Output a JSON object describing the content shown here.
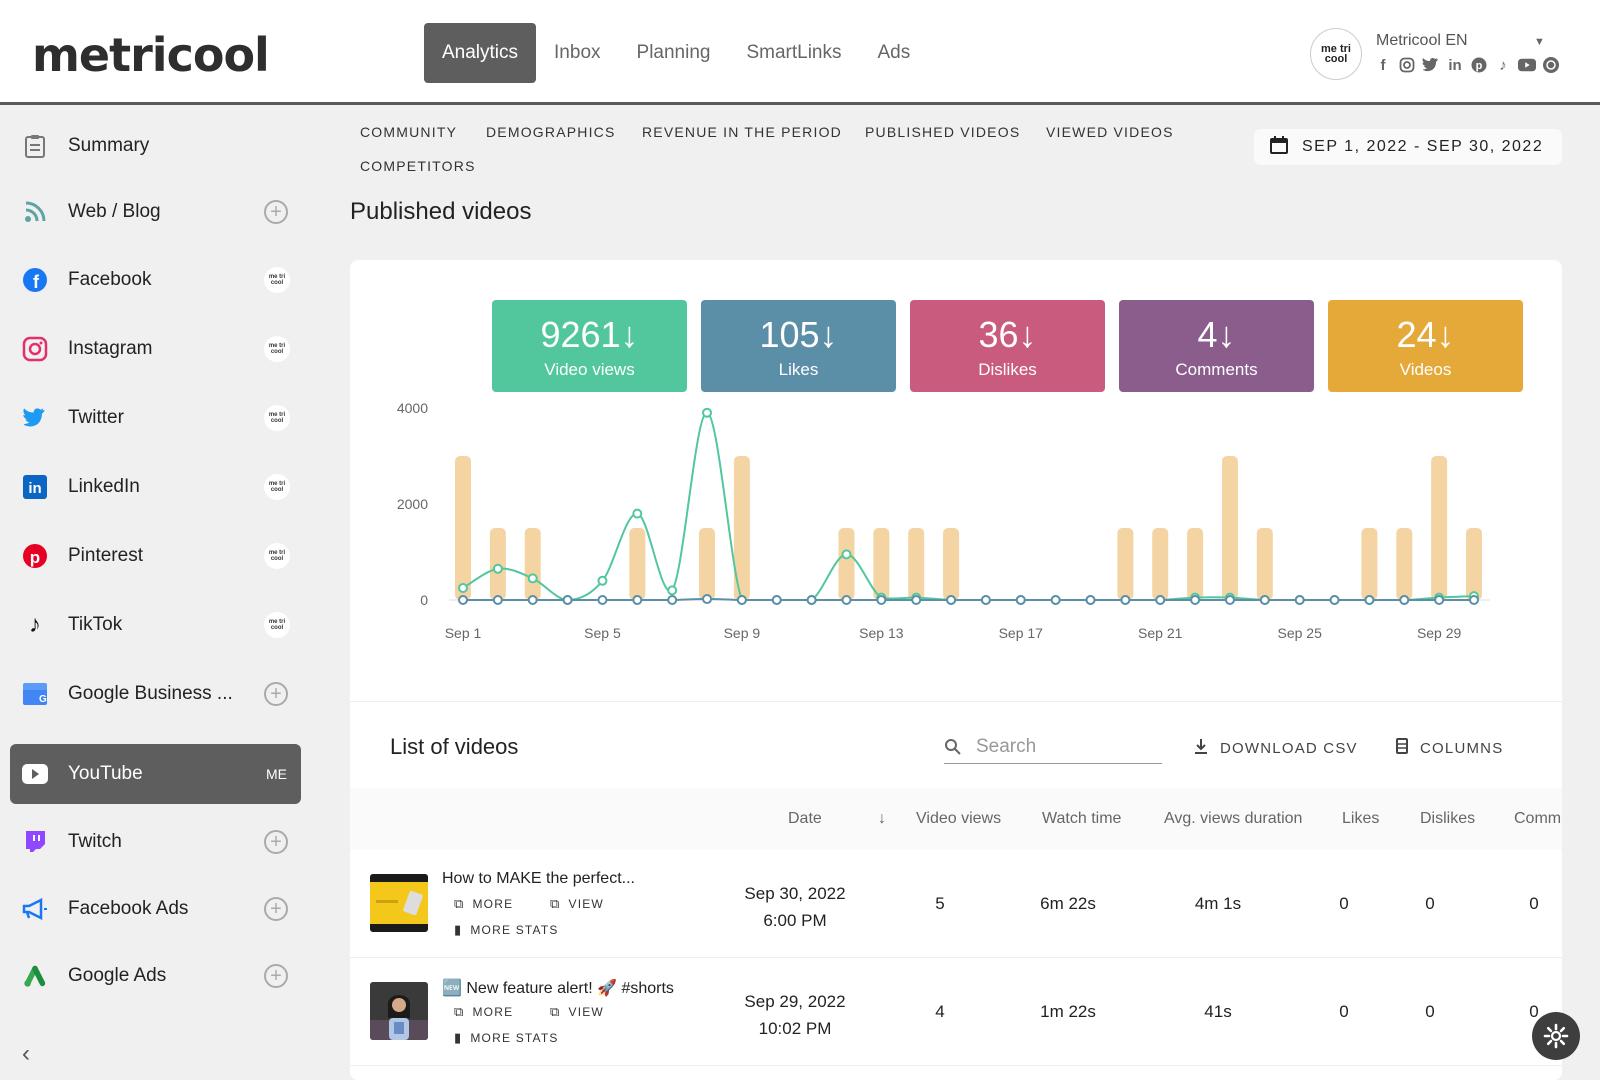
{
  "app": {
    "logo": "metricool",
    "nav": [
      "Analytics",
      "Inbox",
      "Planning",
      "SmartLinks",
      "Ads"
    ],
    "active_nav": "Analytics"
  },
  "account": {
    "name": "Metricool EN",
    "avatar_text": "me tri cool",
    "networks": [
      "facebook-icon",
      "instagram-icon",
      "twitter-icon",
      "linkedin-icon",
      "pinterest-icon",
      "tiktok-icon",
      "youtube-icon",
      "google-business-icon"
    ]
  },
  "sidebar": {
    "items": [
      {
        "label": "Summary",
        "trail": "none",
        "icon": "clipboard-icon"
      },
      {
        "label": "Web / Blog",
        "trail": "plus",
        "icon": "rss-icon"
      },
      {
        "label": "Facebook",
        "trail": "badge",
        "icon": "facebook-icon"
      },
      {
        "label": "Instagram",
        "trail": "badge",
        "icon": "instagram-icon"
      },
      {
        "label": "Twitter",
        "trail": "badge",
        "icon": "twitter-icon"
      },
      {
        "label": "LinkedIn",
        "trail": "badge",
        "icon": "linkedin-icon"
      },
      {
        "label": "Pinterest",
        "trail": "badge",
        "icon": "pinterest-icon"
      },
      {
        "label": "TikTok",
        "trail": "badge",
        "icon": "tiktok-icon"
      },
      {
        "label": "Google Business ...",
        "trail": "plus",
        "icon": "google-business-icon"
      },
      {
        "label": "YouTube",
        "trail": "me",
        "icon": "youtube-icon",
        "active": true
      },
      {
        "label": "Twitch",
        "trail": "plus",
        "icon": "twitch-icon"
      },
      {
        "label": "Facebook Ads",
        "trail": "plus",
        "icon": "megaphone-icon"
      },
      {
        "label": "Google Ads",
        "trail": "plus",
        "icon": "google-ads-icon"
      }
    ],
    "badge_text": "me tri cool",
    "me_text": "ME"
  },
  "subtabs": [
    "COMMUNITY",
    "DEMOGRAPHICS",
    "REVENUE IN THE PERIOD",
    "PUBLISHED VIDEOS",
    "VIEWED VIDEOS",
    "COMPETITORS"
  ],
  "date_range": "SEP 1, 2022 - SEP 30, 2022",
  "page_title": "Published videos",
  "kpis": [
    {
      "value": "9261",
      "label": "Video views",
      "color": "#52c79d"
    },
    {
      "value": "105",
      "label": "Likes",
      "color": "#5b8fa8"
    },
    {
      "value": "36",
      "label": "Dislikes",
      "color": "#c95b7e"
    },
    {
      "value": "4",
      "label": "Comments",
      "color": "#8a5d8c"
    },
    {
      "value": "24",
      "label": "Videos",
      "color": "#e5a93a"
    }
  ],
  "chart_data": {
    "type": "bar",
    "x": [
      "Sep 1",
      "Sep 2",
      "Sep 3",
      "Sep 4",
      "Sep 5",
      "Sep 6",
      "Sep 7",
      "Sep 8",
      "Sep 9",
      "Sep 10",
      "Sep 11",
      "Sep 12",
      "Sep 13",
      "Sep 14",
      "Sep 15",
      "Sep 16",
      "Sep 17",
      "Sep 18",
      "Sep 19",
      "Sep 20",
      "Sep 21",
      "Sep 22",
      "Sep 23",
      "Sep 24",
      "Sep 25",
      "Sep 26",
      "Sep 27",
      "Sep 28",
      "Sep 29",
      "Sep 30"
    ],
    "tick_labels": [
      "Sep 1",
      "Sep 5",
      "Sep 9",
      "Sep 13",
      "Sep 17",
      "Sep 21",
      "Sep 25",
      "Sep 29"
    ],
    "y_ticks": [
      "4000",
      "2000",
      "0"
    ],
    "ylim": [
      0,
      4000
    ],
    "series": [
      {
        "kind": "bar",
        "color": "#f4d4a2",
        "values": [
          3000,
          1500,
          1500,
          0,
          0,
          1500,
          0,
          1500,
          3000,
          0,
          0,
          1500,
          1500,
          1500,
          1500,
          0,
          0,
          0,
          0,
          1500,
          1500,
          1500,
          3000,
          1500,
          0,
          0,
          1500,
          1500,
          3000,
          1500
        ]
      },
      {
        "kind": "line",
        "color": "#52c79d",
        "values": [
          250,
          650,
          450,
          0,
          400,
          1800,
          200,
          3900,
          0,
          0,
          0,
          950,
          50,
          50,
          0,
          0,
          0,
          0,
          0,
          0,
          0,
          50,
          50,
          0,
          0,
          0,
          0,
          0,
          50,
          80
        ]
      },
      {
        "kind": "line",
        "color": "#5b8fa8",
        "values": [
          0,
          0,
          0,
          0,
          0,
          0,
          0,
          20,
          0,
          0,
          0,
          0,
          0,
          0,
          0,
          0,
          0,
          0,
          0,
          0,
          0,
          0,
          0,
          0,
          0,
          0,
          0,
          0,
          0,
          0
        ]
      }
    ],
    "grid": false,
    "legend": "none"
  },
  "list": {
    "title": "List of videos",
    "search_placeholder": "Search",
    "download_label": "DOWNLOAD CSV",
    "columns_label": "COLUMNS",
    "headers": [
      "Date",
      "Video views",
      "Watch time",
      "Avg. views duration",
      "Likes",
      "Dislikes",
      "Comm"
    ],
    "actions": {
      "more": "MORE",
      "view": "VIEW",
      "more_stats": "MORE STATS"
    },
    "rows": [
      {
        "title": "How to MAKE the perfect...",
        "date": "Sep 30, 2022",
        "time": "6:00 PM",
        "views": "5",
        "watch": "6m 22s",
        "avg": "4m 1s",
        "likes": "0",
        "dislikes": "0",
        "comments": "0"
      },
      {
        "title": "🆕 New feature alert! 🚀 #shorts",
        "date": "Sep 29, 2022",
        "time": "10:02 PM",
        "views": "4",
        "watch": "1m 22s",
        "avg": "41s",
        "likes": "0",
        "dislikes": "0",
        "comments": "0"
      }
    ]
  }
}
